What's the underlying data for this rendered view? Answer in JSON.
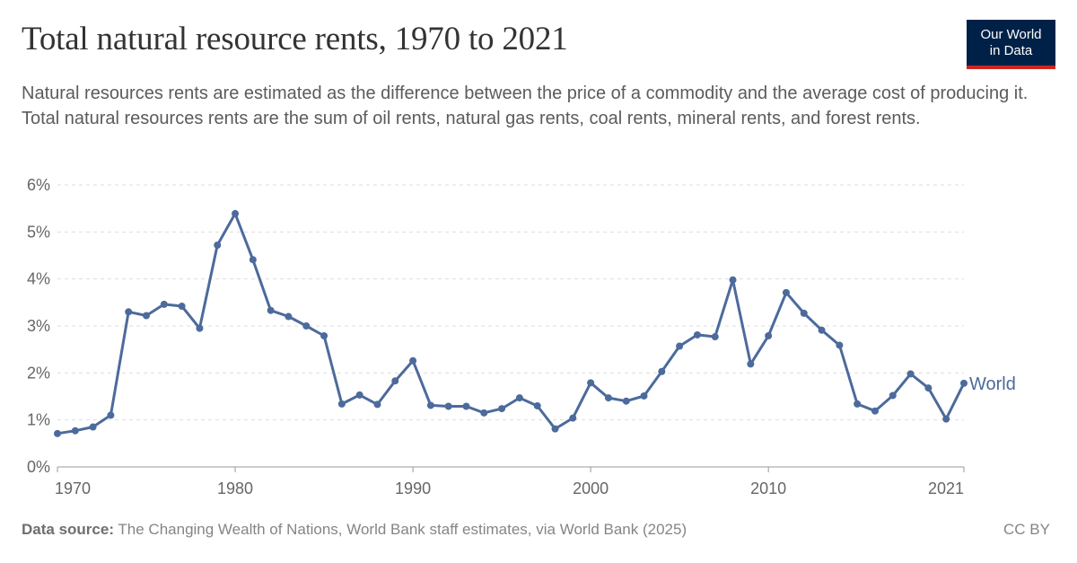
{
  "header": {
    "title": "Total natural resource rents, 1970 to 2021",
    "subtitle": "Natural resources rents are estimated as the difference between the price of a commodity and the average cost of producing it. Total natural resources rents are the sum of oil rents, natural gas rents, coal rents, mineral rents, and forest rents.",
    "logo_line1": "Our World",
    "logo_line2": "in Data"
  },
  "footer": {
    "source_label": "Data source:",
    "source_text": "The Changing Wealth of Nations, World Bank staff estimates, via World Bank (2025)",
    "license": "CC BY"
  },
  "colors": {
    "series": "#4c6a9c",
    "grid": "#dddddd",
    "axis_text": "#666666",
    "logo_bg": "#002147",
    "logo_accent": "#ce261e"
  },
  "chart_data": {
    "type": "line",
    "title": "Total natural resource rents, 1970 to 2021",
    "xlabel": "",
    "ylabel": "",
    "xlim": [
      1970,
      2021
    ],
    "ylim": [
      0,
      6
    ],
    "x_ticks": [
      1970,
      1980,
      1990,
      2000,
      2010,
      2021
    ],
    "y_ticks": [
      0,
      1,
      2,
      3,
      4,
      5,
      6
    ],
    "y_tick_labels": [
      "0%",
      "1%",
      "2%",
      "3%",
      "4%",
      "5%",
      "6%"
    ],
    "grid": "horizontal dashed",
    "legend": "inline label at end of line",
    "series": [
      {
        "name": "World",
        "x": [
          1970,
          1971,
          1972,
          1973,
          1974,
          1975,
          1976,
          1977,
          1978,
          1979,
          1980,
          1981,
          1982,
          1983,
          1984,
          1985,
          1986,
          1987,
          1988,
          1989,
          1990,
          1991,
          1992,
          1993,
          1994,
          1995,
          1996,
          1997,
          1998,
          1999,
          2000,
          2001,
          2002,
          2003,
          2004,
          2005,
          2006,
          2007,
          2008,
          2009,
          2010,
          2011,
          2012,
          2013,
          2014,
          2015,
          2016,
          2017,
          2018,
          2019,
          2020,
          2021
        ],
        "values": [
          0.71,
          0.77,
          0.85,
          1.1,
          3.3,
          3.22,
          3.46,
          3.42,
          2.95,
          4.72,
          5.39,
          4.41,
          3.33,
          3.2,
          3.0,
          2.79,
          1.34,
          1.53,
          1.33,
          1.83,
          2.26,
          1.31,
          1.29,
          1.29,
          1.15,
          1.24,
          1.47,
          1.3,
          0.81,
          1.04,
          1.79,
          1.47,
          1.4,
          1.51,
          2.03,
          2.57,
          2.81,
          2.77,
          3.98,
          2.19,
          2.79,
          3.71,
          3.27,
          2.91,
          2.59,
          1.34,
          1.19,
          1.52,
          1.98,
          1.68,
          1.02,
          1.78
        ]
      }
    ]
  }
}
